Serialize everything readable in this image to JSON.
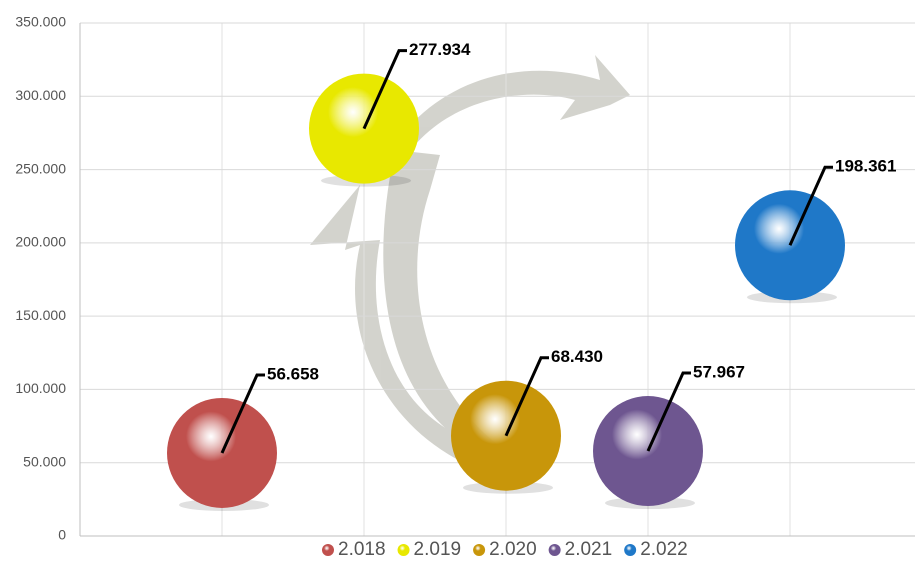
{
  "chart_data": {
    "type": "bubble",
    "series": [
      {
        "name": "2.018",
        "color": "#c0504d",
        "values": [
          56658
        ],
        "value_labels": [
          "56.658"
        ]
      },
      {
        "name": "2.019",
        "color": "#e8e800",
        "values": [
          277934
        ],
        "value_labels": [
          "277.934"
        ]
      },
      {
        "name": "2.020",
        "color": "#c8960a",
        "values": [
          68430
        ],
        "value_labels": [
          "68.430"
        ]
      },
      {
        "name": "2.021",
        "color": "#6e5690",
        "values": [
          57967
        ],
        "value_labels": [
          "57.967"
        ]
      },
      {
        "name": "2.022",
        "color": "#1f78c8",
        "values": [
          198361
        ],
        "value_labels": [
          "198.361"
        ]
      }
    ],
    "ylim": [
      0,
      350000
    ],
    "yticks": [
      {
        "value": 0,
        "label": "0"
      },
      {
        "value": 50000,
        "label": "50.000"
      },
      {
        "value": 100000,
        "label": "100.000"
      },
      {
        "value": 150000,
        "label": "150.000"
      },
      {
        "value": 200000,
        "label": "200.000"
      },
      {
        "value": 250000,
        "label": "250.000"
      },
      {
        "value": 300000,
        "label": "300.000"
      },
      {
        "value": 350000,
        "label": "350.000"
      }
    ],
    "grid": true,
    "legend": "bottom"
  }
}
